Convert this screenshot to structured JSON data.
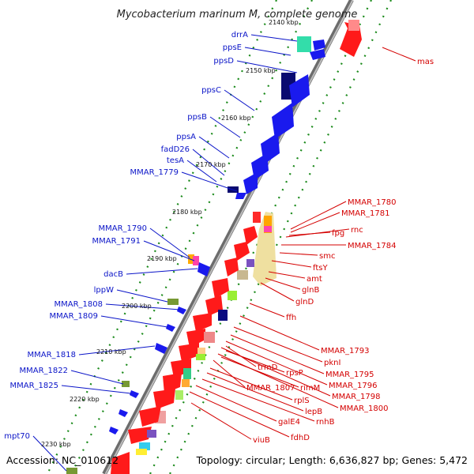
{
  "title": "Mycobacterium marinum M, complete genome",
  "footer": {
    "accession": "Accession: NC_010612",
    "summary": "Topology: circular; Length: 6,636,827 bp; Genes: 5,472"
  },
  "colors": {
    "left_label": "#0a14c8",
    "right_label": "#d40000",
    "backbone": "#8a8a8a",
    "tick_green": "#1a8a1a"
  },
  "kbp_marks": [
    "2140 kbp",
    "2150 kbp",
    "2160 kbp",
    "2170 kbp",
    "2180 kbp",
    "2190 kbp",
    "2200 kbp",
    "2210 kbp",
    "2220 kbp",
    "2230 kbp"
  ],
  "left_genes": [
    "drrA",
    "ppsE",
    "ppsD",
    "ppsC",
    "ppsB",
    "ppsA",
    "fadD26",
    "tesA",
    "MMAR_1779",
    "MMAR_1790",
    "MMAR_1791",
    "dacB",
    "lppW",
    "MMAR_1808",
    "MMAR_1809",
    "MMAR_1818",
    "MMAR_1822",
    "MMAR_1825",
    "mpt70"
  ],
  "right_genes": [
    "mas",
    "MMAR_1780",
    "MMAR_1781",
    "fpg",
    "rnc",
    "MMAR_1784",
    "smc",
    "ftsY",
    "amt",
    "glnB",
    "glnD",
    "ffh",
    "MMAR_1793",
    "pknI",
    "MMAR_1795",
    "MMAR_1796",
    "MMAR_1798",
    "MMAR_1800",
    "trmD",
    "rpsP",
    "rimM",
    "MMAR_1807",
    "rplS",
    "lepB",
    "rnhB",
    "galE4",
    "fdhD",
    "viuB"
  ]
}
